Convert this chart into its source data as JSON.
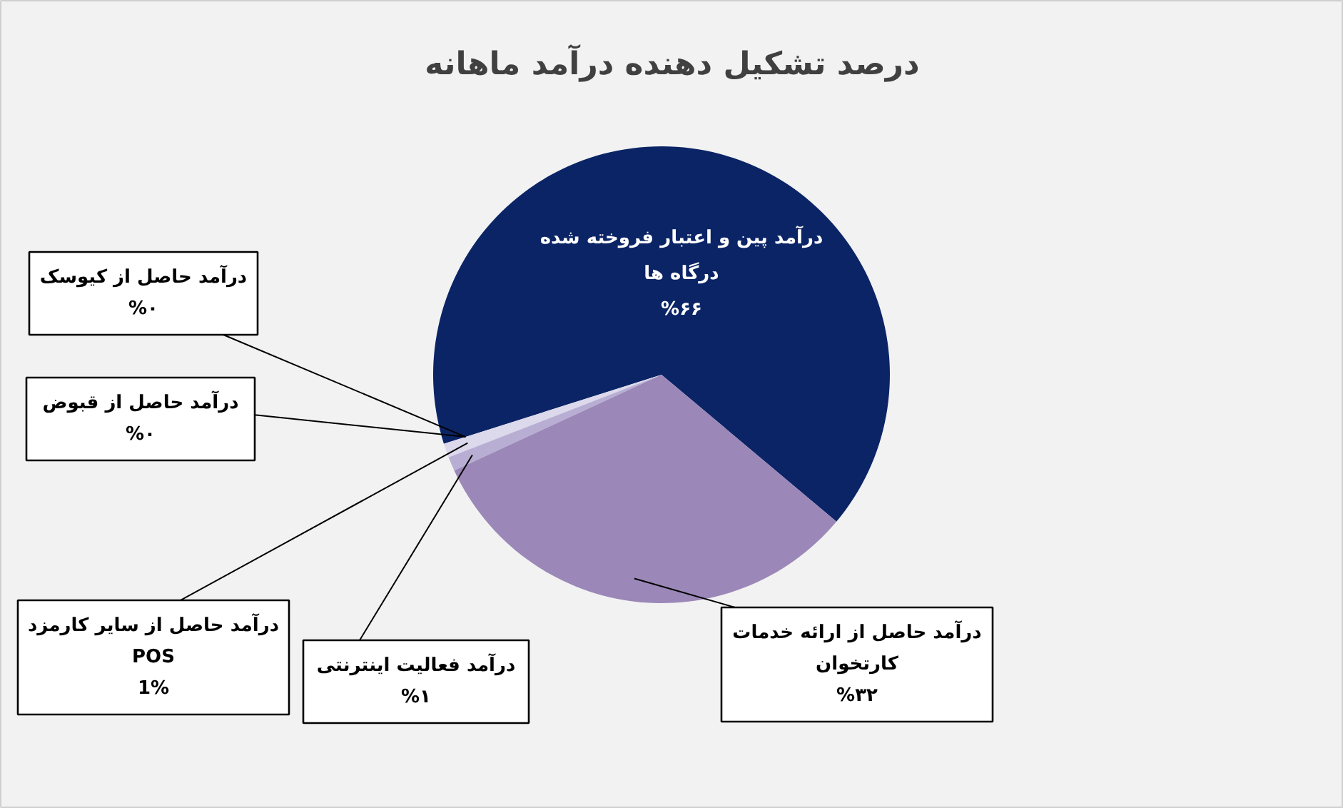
{
  "chart_data": {
    "type": "pie",
    "title": "درصد تشکیل دهنده درآمد ماهانه",
    "categories": [
      "درآمد پین و اعتبار فروخته شده درگاه ها",
      "درآمد حاصل از کیوسک",
      "درآمد حاصل از قبوض",
      "درآمد حاصل از سایر کارمزد POS",
      "درآمد فعالیت اینترنتی",
      "درآمد حاصل از ارائه خدمات کارتخوان"
    ],
    "values": [
      66,
      0,
      0,
      1,
      1,
      32
    ],
    "colors": [
      "#0b2466",
      "#5a5a6e",
      "#9a9a9a",
      "#dcd9ec",
      "#b8aed3",
      "#9b87b8"
    ],
    "value_labels": [
      "%۶۶",
      "%۰",
      "%۰",
      "1%",
      "%۱",
      "%۳۲"
    ]
  }
}
